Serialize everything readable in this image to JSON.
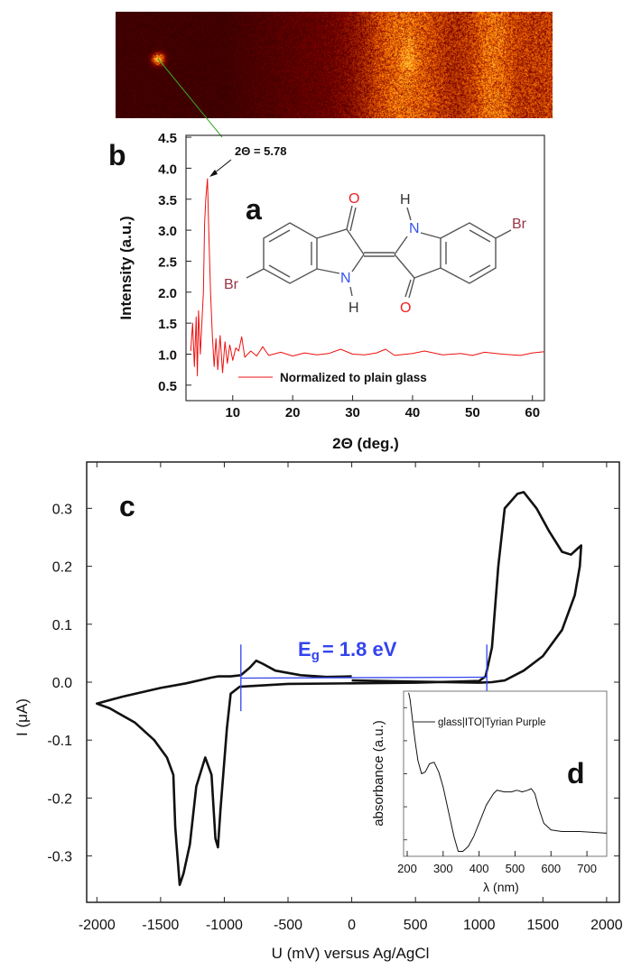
{
  "panels": {
    "a": "a",
    "b": "b",
    "c": "c",
    "d": "d"
  },
  "molecule": {
    "atoms": {
      "O": "O",
      "N": "N",
      "H": "H",
      "Br": "Br"
    },
    "colors": {
      "O": "#ee2222",
      "N": "#3355ee",
      "Br": "#993344",
      "bond": "#555555"
    }
  },
  "colors": {
    "xrd": "#ee1111",
    "cv": "#111111",
    "eg": "#3344ee",
    "pointer": "#33aa22"
  },
  "chart_data": [
    {
      "type": "line",
      "panel": "b",
      "xlabel": "2Θ (deg.)",
      "ylabel": "Intensity (a.u.)",
      "xlim": [
        2.2,
        62
      ],
      "ylim": [
        0.25,
        4.53
      ],
      "xticks": [
        10,
        20,
        30,
        40,
        50,
        60
      ],
      "yticks": [
        "0.5",
        "1.0",
        "1.5",
        "2.0",
        "2.5",
        "3.0",
        "3.5",
        "4.0",
        "4.5"
      ],
      "annotation": "2Θ = 5.78",
      "legend": "Normalized to plain glass",
      "legend_position": "bottom-center",
      "series": [
        {
          "name": "Normalized to plain glass",
          "x": [
            3.0,
            3.3,
            3.6,
            3.9,
            4.1,
            4.3,
            4.6,
            4.9,
            5.1,
            5.3,
            5.5,
            5.78,
            6.0,
            6.3,
            6.6,
            6.9,
            7.2,
            7.5,
            7.9,
            8.3,
            8.7,
            9.1,
            9.5,
            10,
            10.5,
            11,
            11.5,
            12,
            13,
            14,
            15,
            16,
            18,
            20,
            22,
            24,
            26,
            28,
            30,
            32,
            34,
            35.5,
            37,
            40,
            42,
            45,
            48,
            50,
            52,
            55,
            58,
            60,
            62
          ],
          "y": [
            1.05,
            1.5,
            0.8,
            1.6,
            0.65,
            1.7,
            1.0,
            1.6,
            2.0,
            3.1,
            3.5,
            3.83,
            3.0,
            2.0,
            1.3,
            0.8,
            1.25,
            0.75,
            1.3,
            0.7,
            1.2,
            0.85,
            1.15,
            0.9,
            1.1,
            1.05,
            1.28,
            0.95,
            1.05,
            0.97,
            1.12,
            0.98,
            1.03,
            0.97,
            1.02,
            0.99,
            1.01,
            1.08,
            1.0,
            0.99,
            1.02,
            1.08,
            0.98,
            1.01,
            1.05,
            0.99,
            1.01,
            0.98,
            1.03,
            1.0,
            0.98,
            1.02,
            1.04
          ]
        }
      ]
    },
    {
      "type": "line",
      "panel": "c",
      "xlabel": "U (mV) versus Ag/AgCl",
      "ylabel": "I (μA)",
      "xlim": [
        -2080,
        2100
      ],
      "ylim": [
        -0.38,
        0.38
      ],
      "xticks": [
        "-2000",
        "-1500",
        "-1000",
        "-500",
        "0",
        "500",
        "1000",
        "1500",
        "2000"
      ],
      "yticks": [
        "-0.3",
        "-0.2",
        "-0.1",
        "0.0",
        "0.1",
        "0.2",
        "0.3"
      ],
      "annotation": {
        "prefix": "E",
        "subscript": "g",
        "text": "= 1.8 eV",
        "from_mV": -870,
        "to_mV": 1060
      },
      "series": [
        {
          "x": [
            0,
            -200,
            -400,
            -600,
            -700,
            -750,
            -800,
            -870,
            -950,
            -1050,
            -1100,
            -1300,
            -1500,
            -1800,
            -2000,
            -1900,
            -1700,
            -1550,
            -1450,
            -1400,
            -1385,
            -1350,
            -1320,
            -1270,
            -1220,
            -1150,
            -1100,
            -1070,
            -1050,
            -1030,
            -980,
            -950,
            -880,
            -500,
            0,
            500,
            1000,
            1050,
            1100,
            1150,
            1200,
            1300,
            1350,
            1450,
            1550,
            1650,
            1720,
            1780,
            1800,
            1790,
            1750,
            1650,
            1500,
            1350,
            1200,
            1100,
            1000,
            500,
            0
          ],
          "y": [
            0.01,
            0.009,
            0.012,
            0.02,
            0.032,
            0.037,
            0.025,
            0.012,
            0.01,
            0.01,
            0.008,
            -0.002,
            -0.01,
            -0.025,
            -0.037,
            -0.045,
            -0.07,
            -0.1,
            -0.13,
            -0.16,
            -0.25,
            -0.35,
            -0.33,
            -0.28,
            -0.18,
            -0.13,
            -0.16,
            -0.27,
            -0.285,
            -0.22,
            -0.08,
            -0.02,
            -0.008,
            -0.003,
            -0.002,
            -0.001,
            0.002,
            0.01,
            0.06,
            0.2,
            0.3,
            0.325,
            0.328,
            0.3,
            0.26,
            0.225,
            0.22,
            0.232,
            0.236,
            0.2,
            0.15,
            0.09,
            0.045,
            0.02,
            0.003,
            0.0,
            -0.001,
            0.001,
            0.003
          ]
        }
      ]
    },
    {
      "type": "line",
      "panel": "d",
      "xlabel": "λ (nm)",
      "ylabel": "absorbance (a.u.)",
      "xlim": [
        190,
        755
      ],
      "ylim": [
        0,
        1
      ],
      "xticks": [
        "200",
        "300",
        "400",
        "500",
        "600",
        "700"
      ],
      "legend": "glass|ITO|Tyrian Purple",
      "legend_position": "top-right",
      "series": [
        {
          "name": "glass|ITO|Tyrian Purple",
          "x": [
            204,
            208,
            215,
            222,
            230,
            240,
            250,
            262,
            275,
            288,
            300,
            315,
            330,
            342,
            355,
            370,
            385,
            400,
            420,
            440,
            450,
            470,
            490,
            505,
            520,
            535,
            545,
            555,
            565,
            580,
            600,
            630,
            680,
            755
          ],
          "y": [
            0.99,
            0.95,
            0.82,
            0.7,
            0.58,
            0.5,
            0.51,
            0.56,
            0.57,
            0.51,
            0.42,
            0.27,
            0.12,
            0.03,
            0.03,
            0.06,
            0.12,
            0.2,
            0.31,
            0.38,
            0.4,
            0.39,
            0.39,
            0.4,
            0.39,
            0.4,
            0.41,
            0.38,
            0.3,
            0.2,
            0.16,
            0.15,
            0.15,
            0.14
          ]
        }
      ]
    }
  ]
}
